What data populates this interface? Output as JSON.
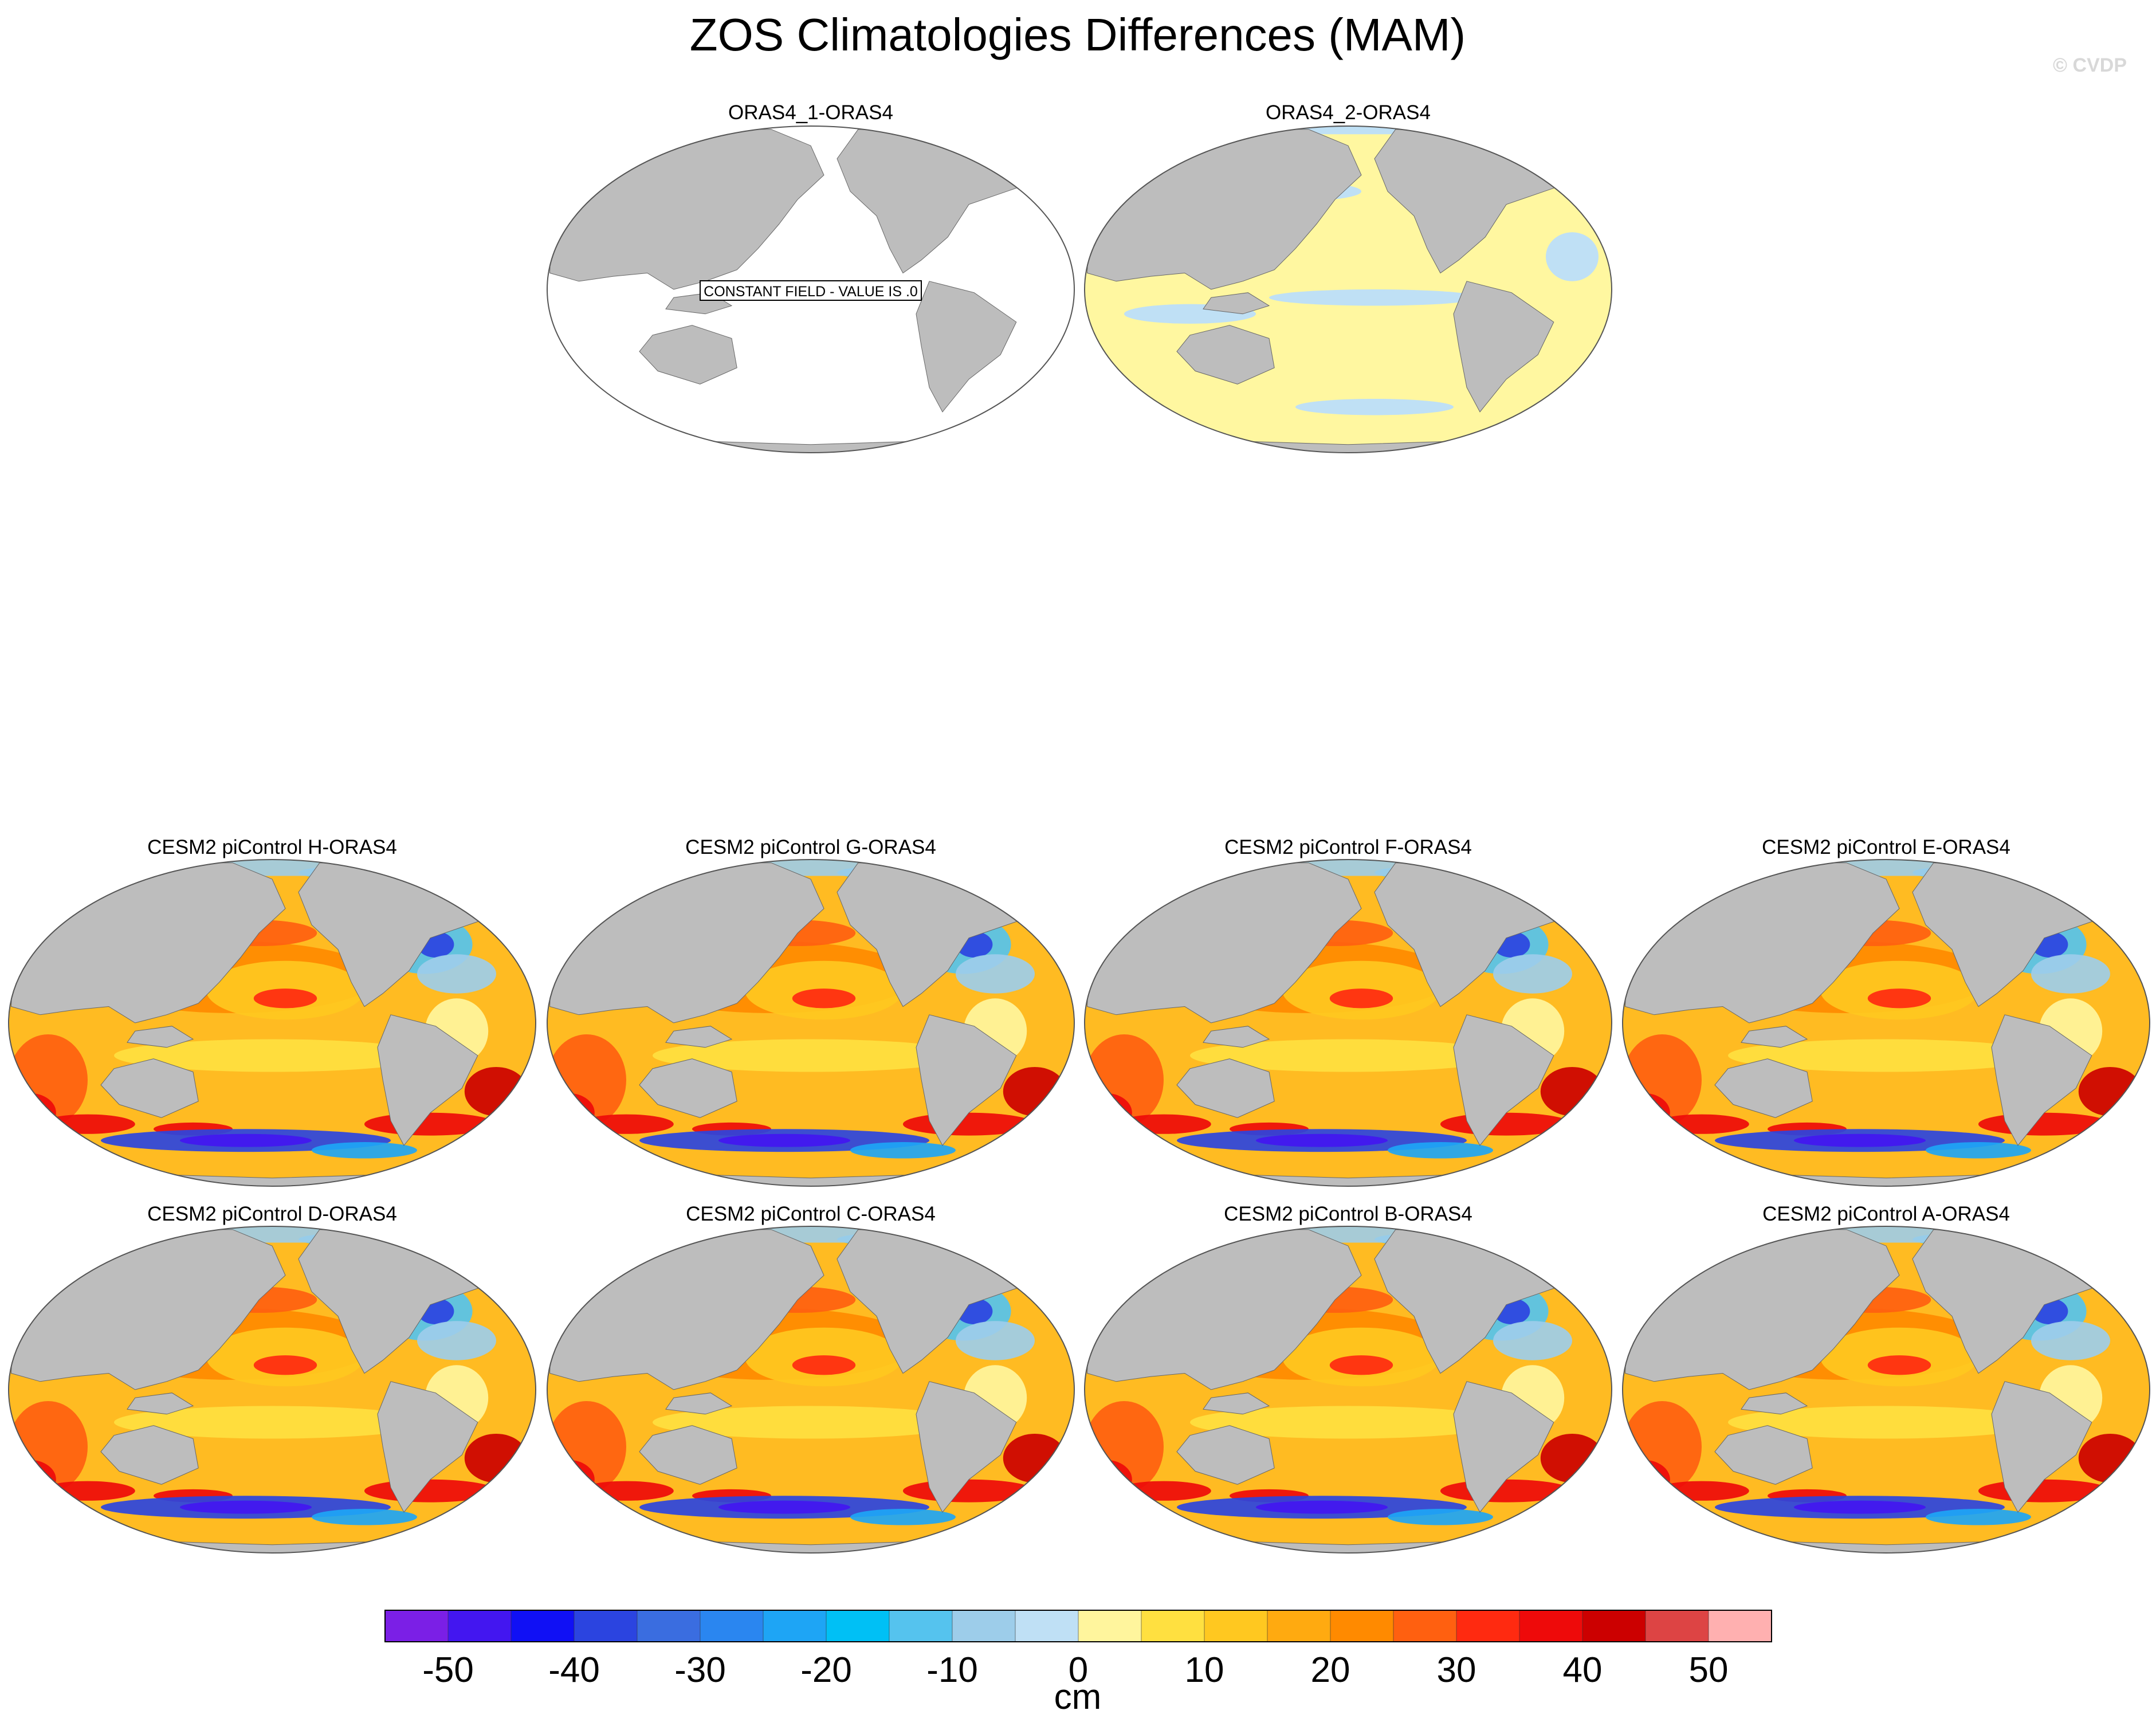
{
  "title": "ZOS Climatologies Differences (MAM)",
  "watermark": "© CVDP",
  "top_panels": [
    {
      "label": "ORAS4_1-ORAS4",
      "mode": "constant",
      "note": "CONSTANT FIELD - VALUE IS .0"
    },
    {
      "label": "ORAS4_2-ORAS4",
      "mode": "near-zero"
    }
  ],
  "model_panels": [
    {
      "label": "CESM2 piControl H-ORAS4"
    },
    {
      "label": "CESM2 piControl G-ORAS4"
    },
    {
      "label": "CESM2 piControl F-ORAS4"
    },
    {
      "label": "CESM2 piControl E-ORAS4"
    },
    {
      "label": "CESM2 piControl D-ORAS4"
    },
    {
      "label": "CESM2 piControl C-ORAS4"
    },
    {
      "label": "CESM2 piControl B-ORAS4"
    },
    {
      "label": "CESM2 piControl A-ORAS4"
    }
  ],
  "colorbar": {
    "unit": "cm",
    "levels": [
      -50,
      -40,
      -30,
      -20,
      -10,
      0,
      10,
      20,
      30,
      40,
      50
    ],
    "colors": [
      "#7b1fe6",
      "#4316f0",
      "#1010f5",
      "#2b44e0",
      "#3a6de0",
      "#2a86f0",
      "#1ea5f5",
      "#00c0f5",
      "#55c3ee",
      "#9dcdea",
      "#bfe0f5",
      "#fff59d",
      "#ffe040",
      "#ffc820",
      "#ffaa10",
      "#ff8a00",
      "#ff6010",
      "#ff2a10",
      "#ee0a0a",
      "#cc0000",
      "#dd4444",
      "#ffb0b0"
    ]
  },
  "colors": {
    "land": "#bdbdbd",
    "ocean_zero": "#ffffff",
    "ocean_near_zero": "#fff7a0",
    "ocean_base": "#ffbb22"
  }
}
